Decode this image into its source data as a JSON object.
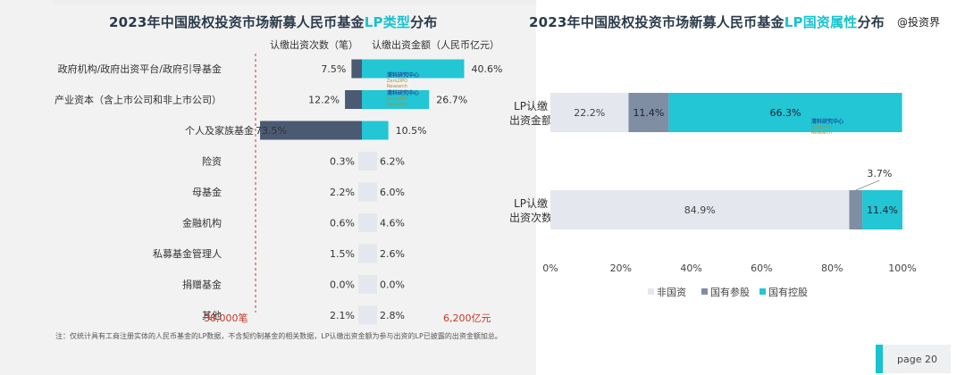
{
  "left_chart": {
    "title_pre": "2023年中国股权投资市场新募人民币基金",
    "title_hl": "LP类型",
    "title_post": "分布",
    "col_count_header": "认缴出资次数（笔）",
    "col_amount_header": "认缴出资金额（人民币亿元）",
    "count_total": "38,000笔",
    "amount_total": "6,200亿元",
    "note": "注：仅统计具有工商注册实体的人民币基金的LP数据，不含契约制基金的相关数据，LP认缴出资金额为参与出资的LP已披露的出资金额加总。"
  },
  "right_chart": {
    "title_pre": "2023年中国股权投资市场新募人民币基金",
    "title_hl": "LP国资属性",
    "title_post": "分布",
    "annotation": "3.7%"
  },
  "brand": "@投资界",
  "page": "page  20",
  "watermark": {
    "line1": "清科研究中心",
    "line2": "Zero2IPO Research"
  },
  "colors": {
    "dark": "#4a5a72",
    "teal": "#22c6d4",
    "light": "#e4e7ee",
    "mid": "#7f8ea3",
    "red": "#c0392b",
    "bg_left": "#f2f2f2"
  },
  "chart_data": [
    {
      "type": "bar",
      "title": "2023年中国股权投资市场新募人民币基金LP类型分布",
      "categories": [
        "政府机构/政府出资平台/政府引导基金",
        "产业资本（含上市公司和非上市公司）",
        "个人及家族基金",
        "险资",
        "母基金",
        "金融机构",
        "私募基金管理人",
        "捐赠基金",
        "其他"
      ],
      "series": [
        {
          "name": "认缴出资次数（笔）",
          "values": [
            7.5,
            12.2,
            73.5,
            0.3,
            2.2,
            0.6,
            1.5,
            0.0,
            2.1
          ],
          "labels": [
            "7.5%",
            "12.2%",
            "73.5%",
            "0.3%",
            "2.2%",
            "0.6%",
            "1.5%",
            "0.0%",
            "2.1%"
          ]
        },
        {
          "name": "认缴出资金额（人民币亿元）",
          "values": [
            40.6,
            26.7,
            10.5,
            6.2,
            6.0,
            4.6,
            2.6,
            0.0,
            2.8
          ],
          "labels": [
            "40.6%",
            "26.7%",
            "10.5%",
            "6.2%",
            "6.0%",
            "4.6%",
            "2.6%",
            "0.0%",
            "2.8%"
          ]
        }
      ]
    },
    {
      "type": "bar",
      "title": "2023年中国股权投资市场新募人民币基金LP国资属性分布",
      "categories": [
        "LP认缴出资金额",
        "LP认缴出资次数"
      ],
      "series": [
        {
          "name": "非国资",
          "values": [
            22.2,
            84.9
          ],
          "labels": [
            "22.2%",
            "84.9%"
          ]
        },
        {
          "name": "国有参股",
          "values": [
            11.4,
            3.7
          ],
          "labels": [
            "11.4%",
            ""
          ]
        },
        {
          "name": "国有控股",
          "values": [
            66.3,
            11.4
          ],
          "labels": [
            "66.3%",
            "11.4%"
          ]
        }
      ],
      "xlim": [
        0,
        100
      ],
      "xticks": [
        "0%",
        "20%",
        "40%",
        "60%",
        "80%",
        "100%"
      ],
      "legend": "bottom"
    }
  ]
}
